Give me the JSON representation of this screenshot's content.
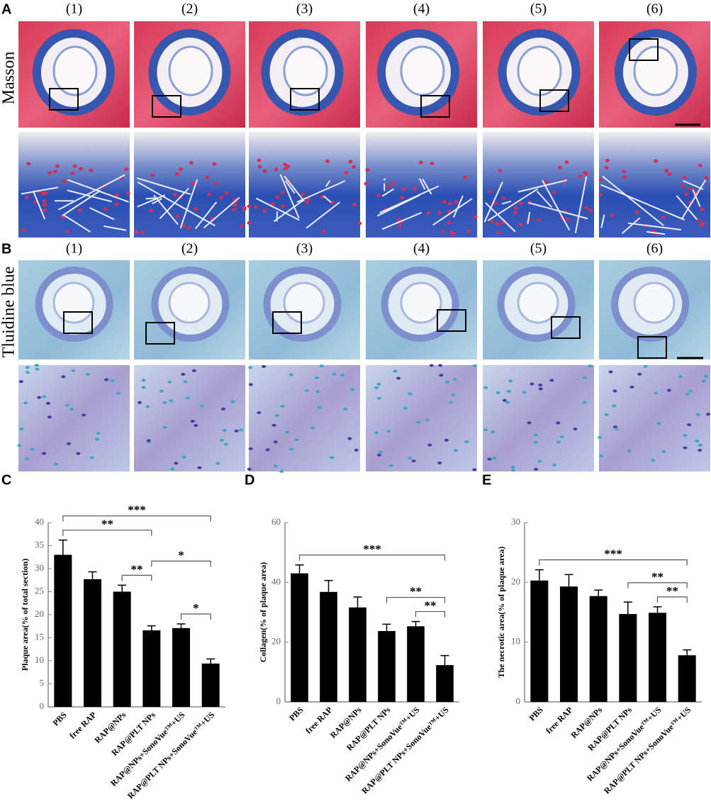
{
  "figure": {
    "panel_labels": [
      "A",
      "B",
      "C",
      "D",
      "E"
    ],
    "masson": {
      "row_label": "Masson",
      "columns": [
        "(1)",
        "(2)",
        "(3)",
        "(4)",
        "(5)",
        "(6)"
      ]
    },
    "toluidine": {
      "row_label": "Tluidine blue",
      "columns": [
        "(1)",
        "(2)",
        "(3)",
        "(4)",
        "(5)",
        "(6)"
      ]
    }
  },
  "chart_data": [
    {
      "type": "bar",
      "y_label": "Plaque area(% of total section)",
      "categories": [
        "PBS",
        "free RAP",
        "RAP@NPs",
        "RAP@PLT NPs",
        "RAP@NPs+SonoVue™+US",
        "RAP@PLT NPs+SonoVue™+US"
      ],
      "values": [
        33,
        27.7,
        25,
        16.6,
        17.1,
        9.4
      ],
      "errors": [
        3.2,
        1.6,
        1.4,
        1.0,
        0.9,
        1.0
      ],
      "color": "#000000",
      "ylim": [
        0,
        40
      ],
      "yticks": [
        0,
        5,
        10,
        15,
        20,
        25,
        30,
        35,
        40
      ],
      "annotations": [
        {
          "from": "RAP@NPs",
          "to": "RAP@PLT NPs",
          "label": "**"
        },
        {
          "from": "RAP@NPs+SonoVue™+US",
          "to": "RAP@PLT NPs+SonoVue™+US",
          "label": "*"
        },
        {
          "from": "RAP@PLT NPs",
          "to": "RAP@PLT NPs+SonoVue™+US",
          "label": "*"
        },
        {
          "from": "PBS",
          "to": "RAP@PLT NPs",
          "label": "**"
        },
        {
          "from": "PBS",
          "to": "RAP@PLT NPs+SonoVue™+US",
          "label": "***"
        }
      ]
    },
    {
      "type": "bar",
      "y_label": "Collagen(% of plaque area)",
      "categories": [
        "PBS",
        "free RAP",
        "RAP@NPs",
        "RAP@PLT NPs",
        "RAP@NPs+SonoVue™+US",
        "RAP@PLT NPs+SonoVue™+US"
      ],
      "values": [
        43,
        36.8,
        31.6,
        23.7,
        25.3,
        12.3
      ],
      "errors": [
        2.8,
        3.8,
        3.5,
        2.3,
        1.6,
        3.2
      ],
      "color": "#000000",
      "ylim": [
        0,
        60
      ],
      "yticks": [
        0,
        20,
        40,
        60
      ],
      "annotations": [
        {
          "from": "RAP@NPs+SonoVue™+US",
          "to": "RAP@PLT NPs+SonoVue™+US",
          "label": "**"
        },
        {
          "from": "RAP@PLT NPs",
          "to": "RAP@PLT NPs+SonoVue™+US",
          "label": "**"
        },
        {
          "from": "PBS",
          "to": "RAP@PLT NPs+SonoVue™+US",
          "label": "***"
        }
      ]
    },
    {
      "type": "bar",
      "y_label": "The necrotic area(% of plaque area)",
      "categories": [
        "PBS",
        "free RAP",
        "RAP@NPs",
        "RAP@PLT NPs",
        "RAP@NPs+SonoVue™+US",
        "RAP@PLT NPs+SonoVue™+US"
      ],
      "values": [
        20.3,
        19.3,
        17.7,
        14.7,
        14.9,
        7.8
      ],
      "errors": [
        1.8,
        2.0,
        1.0,
        2.0,
        1.0,
        0.9
      ],
      "color": "#000000",
      "ylim": [
        0,
        30
      ],
      "yticks": [
        0,
        10,
        20,
        30
      ],
      "annotations": [
        {
          "from": "RAP@NPs+SonoVue™+US",
          "to": "RAP@PLT NPs+SonoVue™+US",
          "label": "**"
        },
        {
          "from": "RAP@PLT NPs",
          "to": "RAP@PLT NPs+SonoVue™+US",
          "label": "**"
        },
        {
          "from": "PBS",
          "to": "RAP@PLT NPs+SonoVue™+US",
          "label": "***"
        }
      ]
    }
  ]
}
